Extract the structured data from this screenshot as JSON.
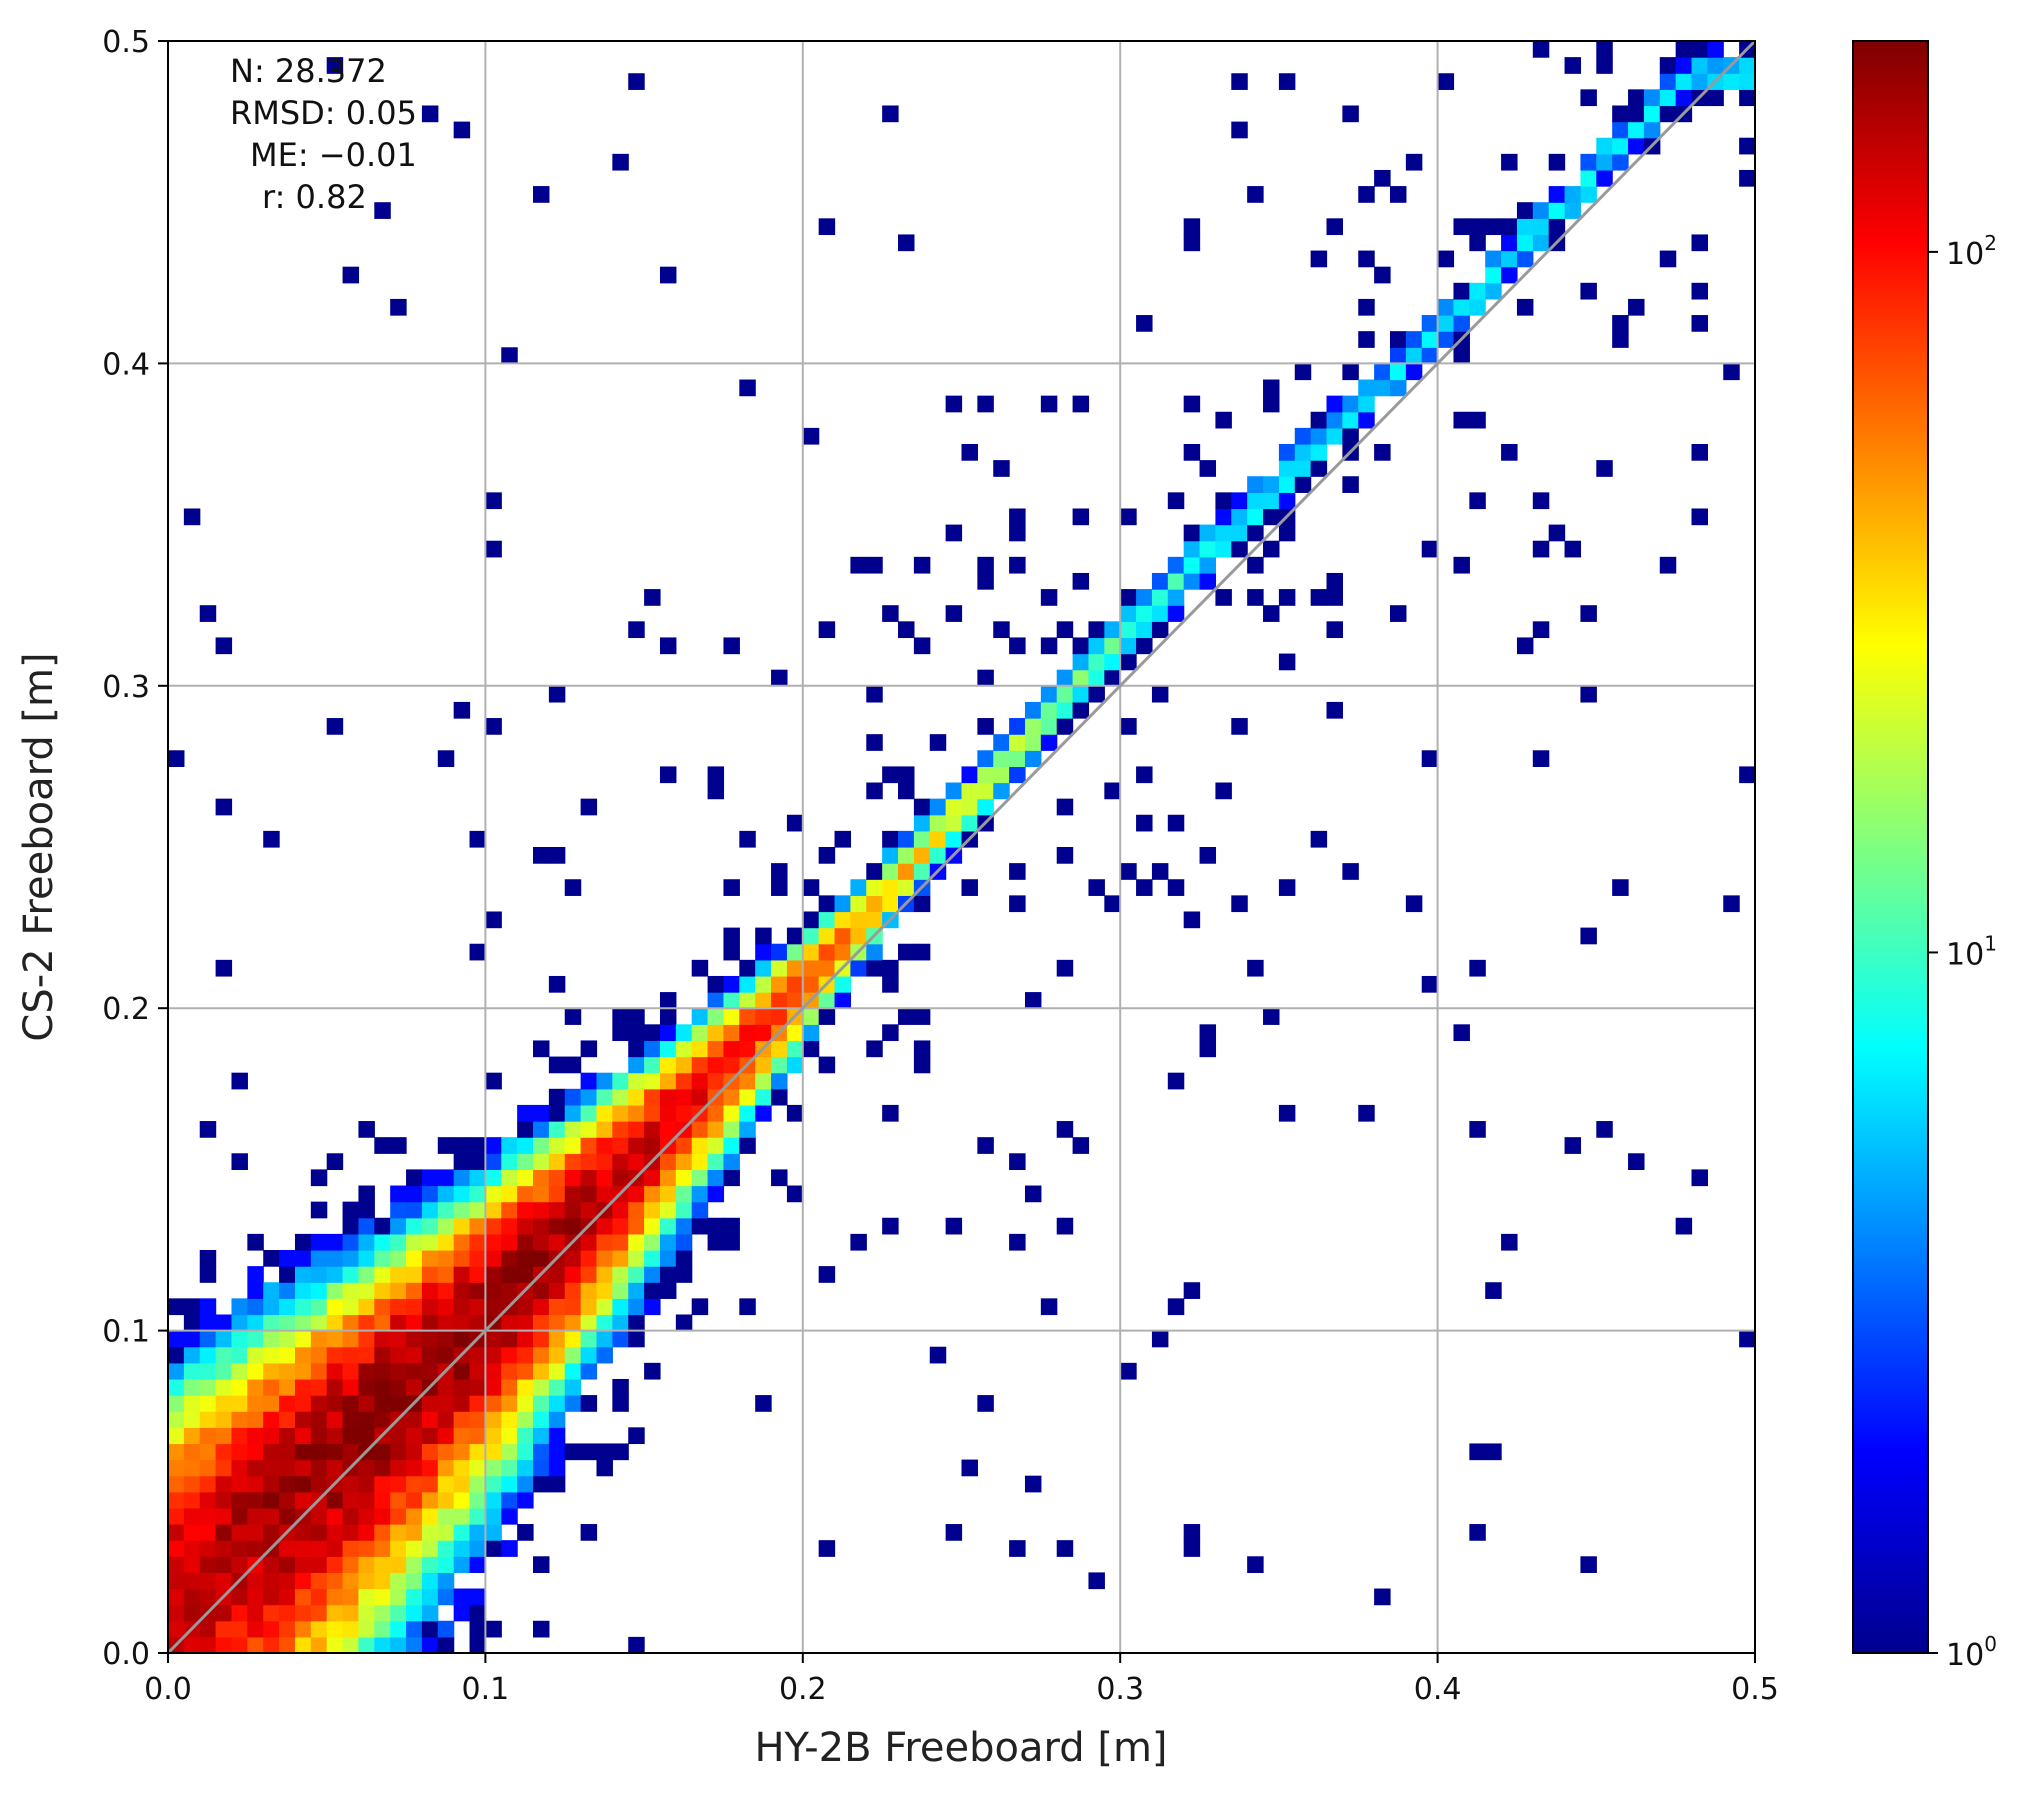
{
  "chart_data": {
    "type": "heatmap",
    "title": "",
    "xlabel": "HY-2B Freeboard [m]",
    "ylabel": "CS-2 Freeboard [m]",
    "xlim": [
      0.0,
      0.5
    ],
    "ylim": [
      0.0,
      0.5
    ],
    "x_ticks": [
      "0.0",
      "0.1",
      "0.2",
      "0.3",
      "0.4",
      "0.5"
    ],
    "y_ticks": [
      "0.0",
      "0.1",
      "0.2",
      "0.3",
      "0.4",
      "0.5"
    ],
    "grid": true,
    "bins": 100,
    "reference_line": "1:1",
    "colormap": "jet",
    "color_scale": "log",
    "colorbar": {
      "range": [
        1,
        200
      ],
      "tick_values": [
        1,
        10,
        100
      ],
      "tick_labels": [
        {
          "base": "10",
          "exp": "0"
        },
        {
          "base": "10",
          "exp": "1"
        },
        {
          "base": "10",
          "exp": "2"
        }
      ]
    },
    "stats": [
      {
        "label": "N:",
        "value": "28.372"
      },
      {
        "label": "RMSD:",
        "value": "0.05"
      },
      {
        "label": "ME:",
        "value": "−0.01"
      },
      {
        "label": "r:",
        "value": "0.82"
      }
    ],
    "ridge": {
      "description_points": [
        [
          0.02,
          0.03
        ],
        [
          0.05,
          0.058
        ],
        [
          0.1,
          0.105
        ],
        [
          0.2,
          0.208
        ],
        [
          0.3,
          0.315
        ],
        [
          0.4,
          0.41
        ],
        [
          0.48,
          0.49
        ]
      ],
      "peak_count": 180
    }
  }
}
